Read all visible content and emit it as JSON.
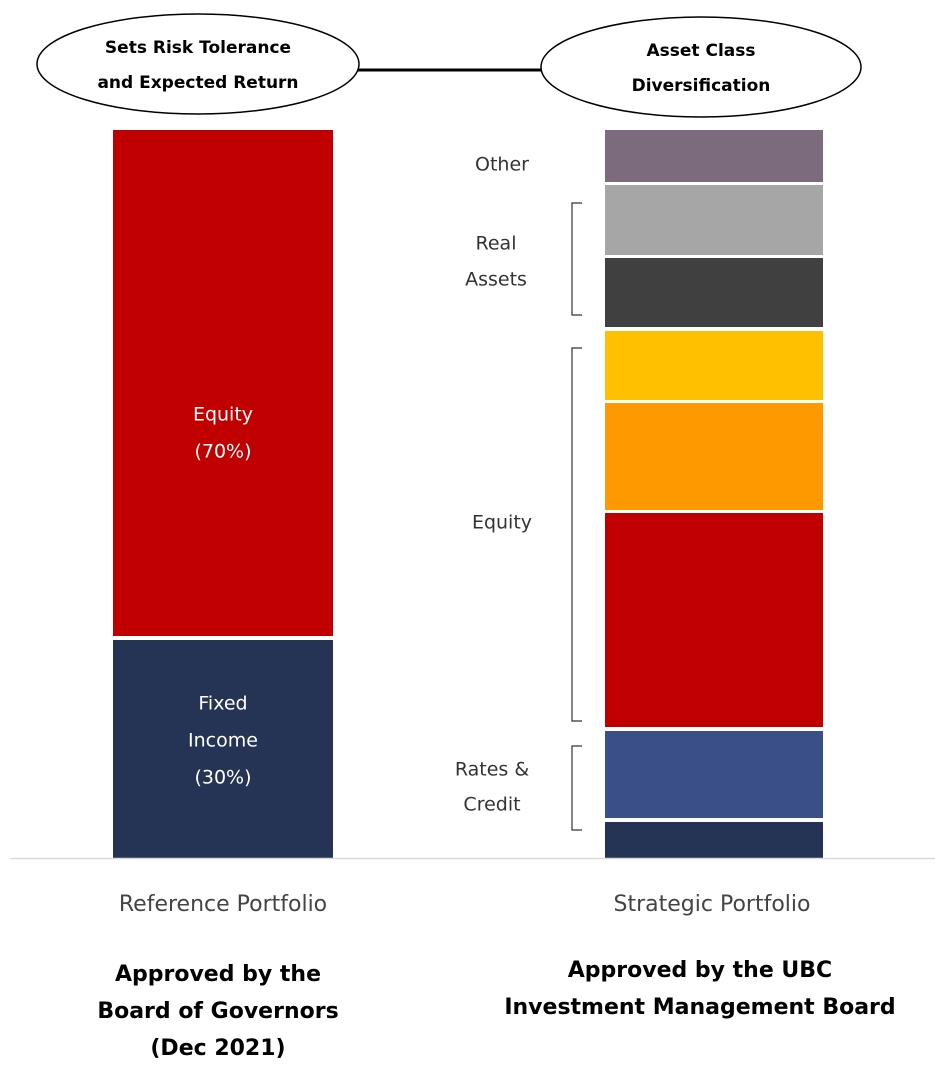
{
  "header": {
    "left_oval": [
      "Sets Risk Tolerance",
      "and Expected Return"
    ],
    "right_oval": [
      "Asset Class",
      "Diversification"
    ]
  },
  "reference_portfolio": {
    "segments": [
      {
        "label": [
          "Equity",
          "(70%)"
        ]
      },
      {
        "label": [
          "Fixed",
          "Income",
          "(30%)"
        ]
      }
    ],
    "name": "Reference Portfolio",
    "approval": [
      "Approved by the",
      "Board of Governors",
      "(Dec 2021)"
    ]
  },
  "strategic_portfolio": {
    "groups": [
      {
        "label": [
          "Other"
        ]
      },
      {
        "label": [
          "Real",
          "Assets"
        ]
      },
      {
        "label": [
          "Equity"
        ]
      },
      {
        "label": [
          "Rates &",
          "Credit"
        ]
      }
    ],
    "name": "Strategic Portfolio",
    "approval": [
      "Approved by the UBC",
      "Investment Management Board"
    ]
  }
}
